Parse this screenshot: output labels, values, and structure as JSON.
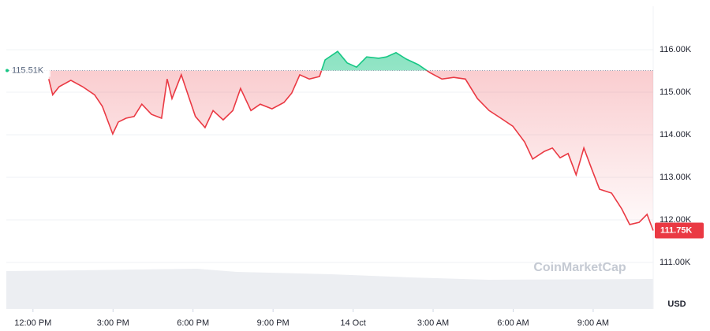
{
  "chart_data": {
    "type": "line",
    "x": [
      12.59,
      12.74,
      12.98,
      13.42,
      13.86,
      14.31,
      14.6,
      14.99,
      15.2,
      15.49,
      15.79,
      16.08,
      16.44,
      16.82,
      17.03,
      17.21,
      17.56,
      17.86,
      18.09,
      18.45,
      18.75,
      19.13,
      19.49,
      19.78,
      20.17,
      20.52,
      20.96,
      21.41,
      21.7,
      22.0,
      22.36,
      22.74,
      22.95,
      23.42,
      23.78,
      24.13,
      24.51,
      24.96,
      25.25,
      25.61,
      25.99,
      26.44,
      26.88,
      27.33,
      27.77,
      28.21,
      28.66,
      29.1,
      29.54,
      29.99,
      30.43,
      30.73,
      31.17,
      31.47,
      31.76,
      32.06,
      32.36,
      32.65,
      32.95,
      33.24,
      33.69,
      34.07,
      34.37,
      34.72,
      35.02,
      35.25
    ],
    "values": [
      115310,
      114940,
      115130,
      115280,
      115130,
      114940,
      114670,
      114020,
      114300,
      114390,
      114430,
      114720,
      114480,
      114390,
      115310,
      114850,
      115410,
      114850,
      114430,
      114170,
      114570,
      114350,
      114570,
      115090,
      114570,
      114720,
      114610,
      114760,
      114980,
      115410,
      115310,
      115370,
      115760,
      115960,
      115690,
      115590,
      115830,
      115800,
      115830,
      115930,
      115780,
      115650,
      115460,
      115310,
      115350,
      115310,
      114850,
      114570,
      114390,
      114200,
      113830,
      113430,
      113610,
      113690,
      113460,
      113560,
      113060,
      113690,
      113190,
      112720,
      112630,
      112260,
      111890,
      111940,
      112130,
      111750
    ],
    "up_color": "#16c784",
    "down_color": "#ea3943",
    "reference": {
      "value": 115510,
      "label": "115.51K"
    },
    "current_price": {
      "value": 111750,
      "label": "111.75K"
    },
    "xlim": [
      11.0,
      35.25
    ],
    "ylim": [
      110870,
      117020
    ],
    "xticks": [
      {
        "value": 12,
        "label": "12:00 PM"
      },
      {
        "value": 15,
        "label": "3:00 PM"
      },
      {
        "value": 18,
        "label": "6:00 PM"
      },
      {
        "value": 21,
        "label": "9:00 PM"
      },
      {
        "value": 24,
        "label": "14 Oct"
      },
      {
        "value": 27,
        "label": "3:00 AM"
      },
      {
        "value": 30,
        "label": "6:00 AM"
      },
      {
        "value": 33,
        "label": "9:00 AM"
      }
    ],
    "yticks": [
      {
        "value": 116000,
        "label": "116.00K"
      },
      {
        "value": 115000,
        "label": "115.00K"
      },
      {
        "value": 114000,
        "label": "114.00K"
      },
      {
        "value": 113000,
        "label": "113.00K"
      },
      {
        "value": 112000,
        "label": "112.00K"
      },
      {
        "value": 111000,
        "label": "111.00K"
      }
    ],
    "grid": true,
    "currency_label": "USD",
    "watermark": "CoinMarketCap"
  }
}
